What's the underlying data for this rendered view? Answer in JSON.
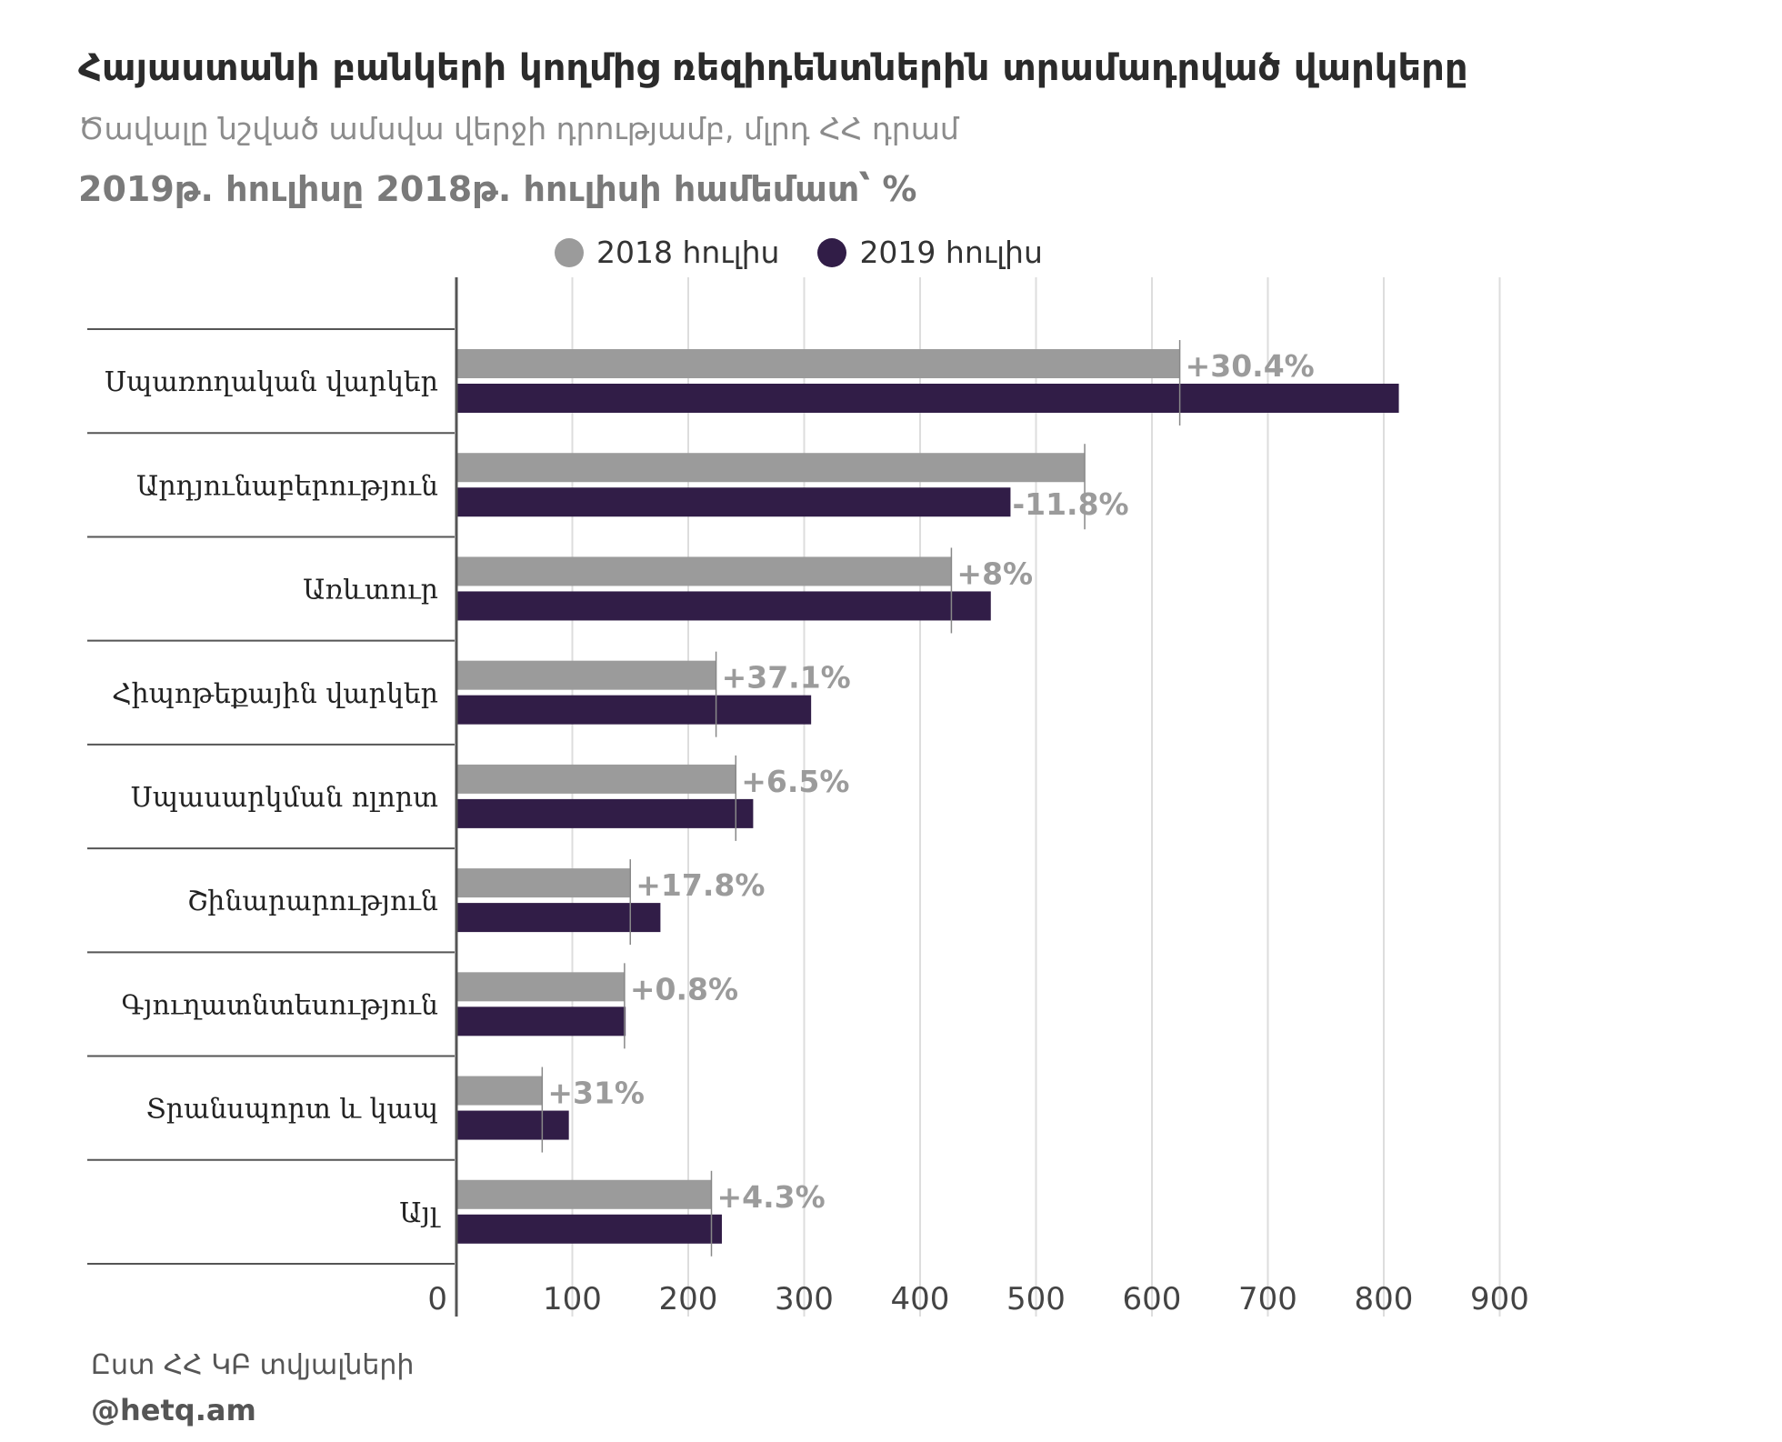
{
  "header": {
    "title": "Հայաստանի բանկերի կողմից ռեզիդենտներին տրամադրված վարկերը",
    "subtitle": "Ծավալը նշված ամսվա վերջի դրությամբ, մլրդ ՀՀ դրամ",
    "subtitle2": "2019թ. հուլիսը 2018թ. հուլիսի համեմատ՝ %"
  },
  "legend": {
    "items": [
      {
        "label": "2018 հուլիս",
        "color": "#9b9b9b"
      },
      {
        "label": "2019 հուլիս",
        "color": "#311d47"
      }
    ]
  },
  "chart_data": {
    "type": "bar",
    "orientation": "horizontal",
    "categories": [
      "Սպառողական վարկեր",
      "Արդյունաբերություն",
      "Առևտուր",
      "Հիպոթեքային վարկեր",
      "Սպասարկման ոլորտ",
      "Շինարարություն",
      "Գյուղատնտեսություն",
      "Տրանսպորտ և կապ",
      "Այլ"
    ],
    "series": [
      {
        "name": "2018 հուլիս",
        "color": "#9b9b9b",
        "values": [
          624,
          542,
          427,
          224,
          241,
          150,
          145,
          74,
          220
        ]
      },
      {
        "name": "2019 հուլիս",
        "color": "#311d47",
        "values": [
          813,
          478,
          461,
          306,
          256,
          176,
          146,
          97,
          229
        ]
      }
    ],
    "change_labels": [
      "+30.4%",
      "-11.8%",
      "+8%",
      "+37.1%",
      "+6.5%",
      "+17.8%",
      "+0.8%",
      "+31%",
      "+4.3%"
    ],
    "x_ticks": [
      "0",
      "100",
      "200",
      "300",
      "400",
      "500",
      "600",
      "700",
      "800",
      "900"
    ],
    "xlim": [
      0,
      900
    ],
    "grid": true,
    "legend_position": "top"
  },
  "footer": {
    "source": "Ըստ ՀՀ ԿԲ տվյալների",
    "handle": "@hetq.am"
  }
}
